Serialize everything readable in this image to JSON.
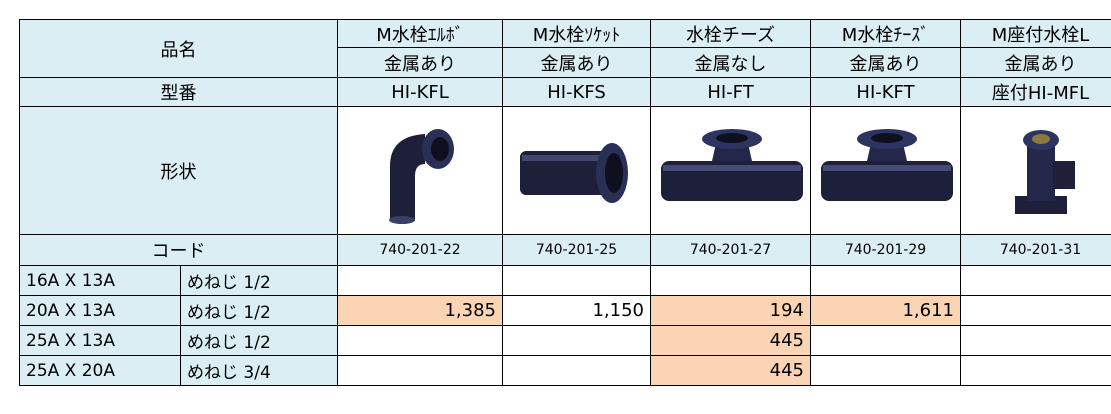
{
  "header": {
    "name_label": "品名",
    "model_label": "型番",
    "shape_label": "形状",
    "code_label": "コード"
  },
  "columns": [
    {
      "name": "M水栓ｴﾙﾎﾞ",
      "metal": "金属あり",
      "model": "HI-KFL",
      "code": "740-201-22"
    },
    {
      "name": "M水栓ｿｹｯﾄ",
      "metal": "金属あり",
      "model": "HI-KFS",
      "code": "740-201-25"
    },
    {
      "name": "水栓チーズ",
      "metal": "金属なし",
      "model": "HI-FT",
      "code": "740-201-27"
    },
    {
      "name": "M水栓ﾁｰｽﾞ",
      "metal": "金属あり",
      "model": "HI-KFT",
      "code": "740-201-29"
    },
    {
      "name": "M座付水栓L",
      "metal": "金属あり",
      "model": "座付HI-MFL",
      "code": "740-201-31"
    }
  ],
  "rows": [
    {
      "size": "16A X 13A",
      "thread": "めねじ 1/2",
      "cells": [
        null,
        null,
        null,
        null,
        null
      ]
    },
    {
      "size": "20A X 13A",
      "thread": "めねじ 1/2",
      "cells": [
        {
          "value": "1,385",
          "highlight": true
        },
        {
          "value": "1,150",
          "highlight": false
        },
        {
          "value": "194",
          "highlight": true
        },
        {
          "value": "1,611",
          "highlight": true
        },
        null
      ]
    },
    {
      "size": "25A X 13A",
      "thread": "めねじ 1/2",
      "cells": [
        null,
        null,
        {
          "value": "445",
          "highlight": true
        },
        null,
        null
      ]
    },
    {
      "size": "25A X 20A",
      "thread": "めねじ 3/4",
      "cells": [
        null,
        null,
        {
          "value": "445",
          "highlight": true
        },
        null,
        null
      ]
    }
  ]
}
